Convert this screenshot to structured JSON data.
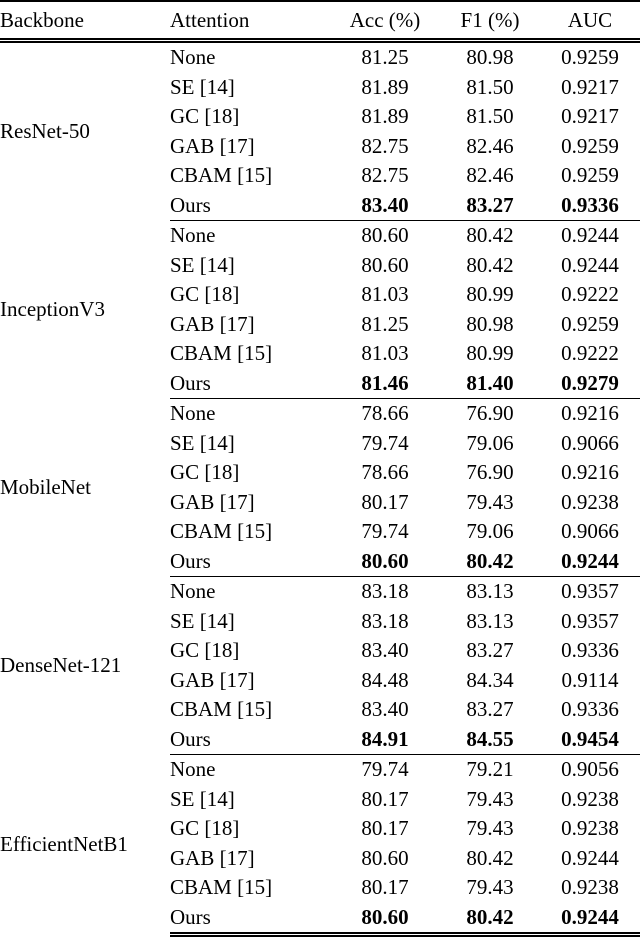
{
  "table": {
    "columns": [
      {
        "key": "backbone",
        "label": "Backbone"
      },
      {
        "key": "attention",
        "label": "Attention"
      },
      {
        "key": "acc",
        "label": "Acc (%)"
      },
      {
        "key": "f1",
        "label": "F1 (%)"
      },
      {
        "key": "auc",
        "label": "AUC"
      }
    ],
    "colors": {
      "text": "#000000",
      "background": "#ffffff",
      "rule": "#000000"
    },
    "groups": [
      {
        "backbone": "ResNet-50",
        "rows": [
          {
            "attention": "None",
            "acc": "81.25",
            "f1": "80.98",
            "auc": "0.9259",
            "bold": false
          },
          {
            "attention": "SE [14]",
            "acc": "81.89",
            "f1": "81.50",
            "auc": "0.9217",
            "bold": false
          },
          {
            "attention": "GC [18]",
            "acc": "81.89",
            "f1": "81.50",
            "auc": "0.9217",
            "bold": false
          },
          {
            "attention": "GAB [17]",
            "acc": "82.75",
            "f1": "82.46",
            "auc": "0.9259",
            "bold": false
          },
          {
            "attention": "CBAM [15]",
            "acc": "82.75",
            "f1": "82.46",
            "auc": "0.9259",
            "bold": false
          },
          {
            "attention": "Ours",
            "acc": "83.40",
            "f1": "83.27",
            "auc": "0.9336",
            "bold": true
          }
        ]
      },
      {
        "backbone": "InceptionV3",
        "rows": [
          {
            "attention": "None",
            "acc": "80.60",
            "f1": "80.42",
            "auc": "0.9244",
            "bold": false
          },
          {
            "attention": "SE [14]",
            "acc": "80.60",
            "f1": "80.42",
            "auc": "0.9244",
            "bold": false
          },
          {
            "attention": "GC [18]",
            "acc": "81.03",
            "f1": "80.99",
            "auc": "0.9222",
            "bold": false
          },
          {
            "attention": "GAB [17]",
            "acc": "81.25",
            "f1": "80.98",
            "auc": "0.9259",
            "bold": false
          },
          {
            "attention": "CBAM [15]",
            "acc": "81.03",
            "f1": "80.99",
            "auc": "0.9222",
            "bold": false
          },
          {
            "attention": "Ours",
            "acc": "81.46",
            "f1": "81.40",
            "auc": "0.9279",
            "bold": true
          }
        ]
      },
      {
        "backbone": "MobileNet",
        "rows": [
          {
            "attention": "None",
            "acc": "78.66",
            "f1": "76.90",
            "auc": "0.9216",
            "bold": false
          },
          {
            "attention": "SE [14]",
            "acc": "79.74",
            "f1": "79.06",
            "auc": "0.9066",
            "bold": false
          },
          {
            "attention": "GC [18]",
            "acc": "78.66",
            "f1": "76.90",
            "auc": "0.9216",
            "bold": false
          },
          {
            "attention": "GAB [17]",
            "acc": "80.17",
            "f1": "79.43",
            "auc": "0.9238",
            "bold": false
          },
          {
            "attention": "CBAM [15]",
            "acc": "79.74",
            "f1": "79.06",
            "auc": "0.9066",
            "bold": false
          },
          {
            "attention": "Ours",
            "acc": "80.60",
            "f1": "80.42",
            "auc": "0.9244",
            "bold": true
          }
        ]
      },
      {
        "backbone": "DenseNet-121",
        "rows": [
          {
            "attention": "None",
            "acc": "83.18",
            "f1": "83.13",
            "auc": "0.9357",
            "bold": false
          },
          {
            "attention": "SE [14]",
            "acc": "83.18",
            "f1": "83.13",
            "auc": "0.9357",
            "bold": false
          },
          {
            "attention": "GC [18]",
            "acc": "83.40",
            "f1": "83.27",
            "auc": "0.9336",
            "bold": false
          },
          {
            "attention": "GAB [17]",
            "acc": "84.48",
            "f1": "84.34",
            "auc": "0.9114",
            "bold": false
          },
          {
            "attention": "CBAM [15]",
            "acc": "83.40",
            "f1": "83.27",
            "auc": "0.9336",
            "bold": false
          },
          {
            "attention": "Ours",
            "acc": "84.91",
            "f1": "84.55",
            "auc": "0.9454",
            "bold": true
          }
        ]
      },
      {
        "backbone": "EfficientNetB1",
        "rows": [
          {
            "attention": "None",
            "acc": "79.74",
            "f1": "79.21",
            "auc": "0.9056",
            "bold": false
          },
          {
            "attention": "SE [14]",
            "acc": "80.17",
            "f1": "79.43",
            "auc": "0.9238",
            "bold": false
          },
          {
            "attention": "GC [18]",
            "acc": "80.17",
            "f1": "79.43",
            "auc": "0.9238",
            "bold": false
          },
          {
            "attention": "GAB [17]",
            "acc": "80.60",
            "f1": "80.42",
            "auc": "0.9244",
            "bold": false
          },
          {
            "attention": "CBAM [15]",
            "acc": "80.17",
            "f1": "79.43",
            "auc": "0.9238",
            "bold": false
          },
          {
            "attention": "Ours",
            "acc": "80.60",
            "f1": "80.42",
            "auc": "0.9244",
            "bold": true
          }
        ]
      }
    ]
  }
}
